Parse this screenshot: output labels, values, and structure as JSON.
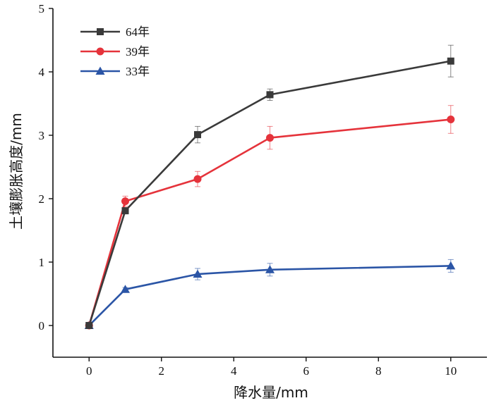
{
  "chart_data": {
    "type": "line",
    "xlabel": "降水量/mm",
    "ylabel": "土壤膨胀高度/mm",
    "xlim": [
      -1,
      11
    ],
    "ylim": [
      -0.5,
      5
    ],
    "x_ticks": [
      0,
      2,
      4,
      6,
      8,
      10
    ],
    "y_ticks": [
      0,
      1,
      2,
      3,
      4,
      5
    ],
    "x_tick_labels": [
      "0",
      "2",
      "4",
      "6",
      "8",
      "10"
    ],
    "y_tick_labels": [
      "0",
      "1",
      "2",
      "3",
      "4",
      "5"
    ],
    "grid": false,
    "legend_position": "top-left",
    "series": [
      {
        "name": "64年",
        "color": "#3a3a3a",
        "marker": "square",
        "x": [
          0,
          1,
          3,
          5,
          10
        ],
        "y": [
          0.0,
          1.81,
          3.01,
          3.64,
          4.17
        ],
        "err": [
          0.02,
          0.05,
          0.13,
          0.09,
          0.25
        ]
      },
      {
        "name": "39年",
        "color": "#e5333b",
        "marker": "circle",
        "x": [
          0,
          1,
          3,
          5,
          10
        ],
        "y": [
          0.0,
          1.96,
          2.31,
          2.96,
          3.25
        ],
        "err": [
          0.02,
          0.08,
          0.12,
          0.18,
          0.22
        ]
      },
      {
        "name": "33年",
        "color": "#2b55a6",
        "marker": "triangle",
        "x": [
          0,
          1,
          3,
          5,
          10
        ],
        "y": [
          0.0,
          0.57,
          0.81,
          0.88,
          0.94
        ],
        "err": [
          0.02,
          0.03,
          0.09,
          0.1,
          0.1
        ]
      }
    ]
  }
}
